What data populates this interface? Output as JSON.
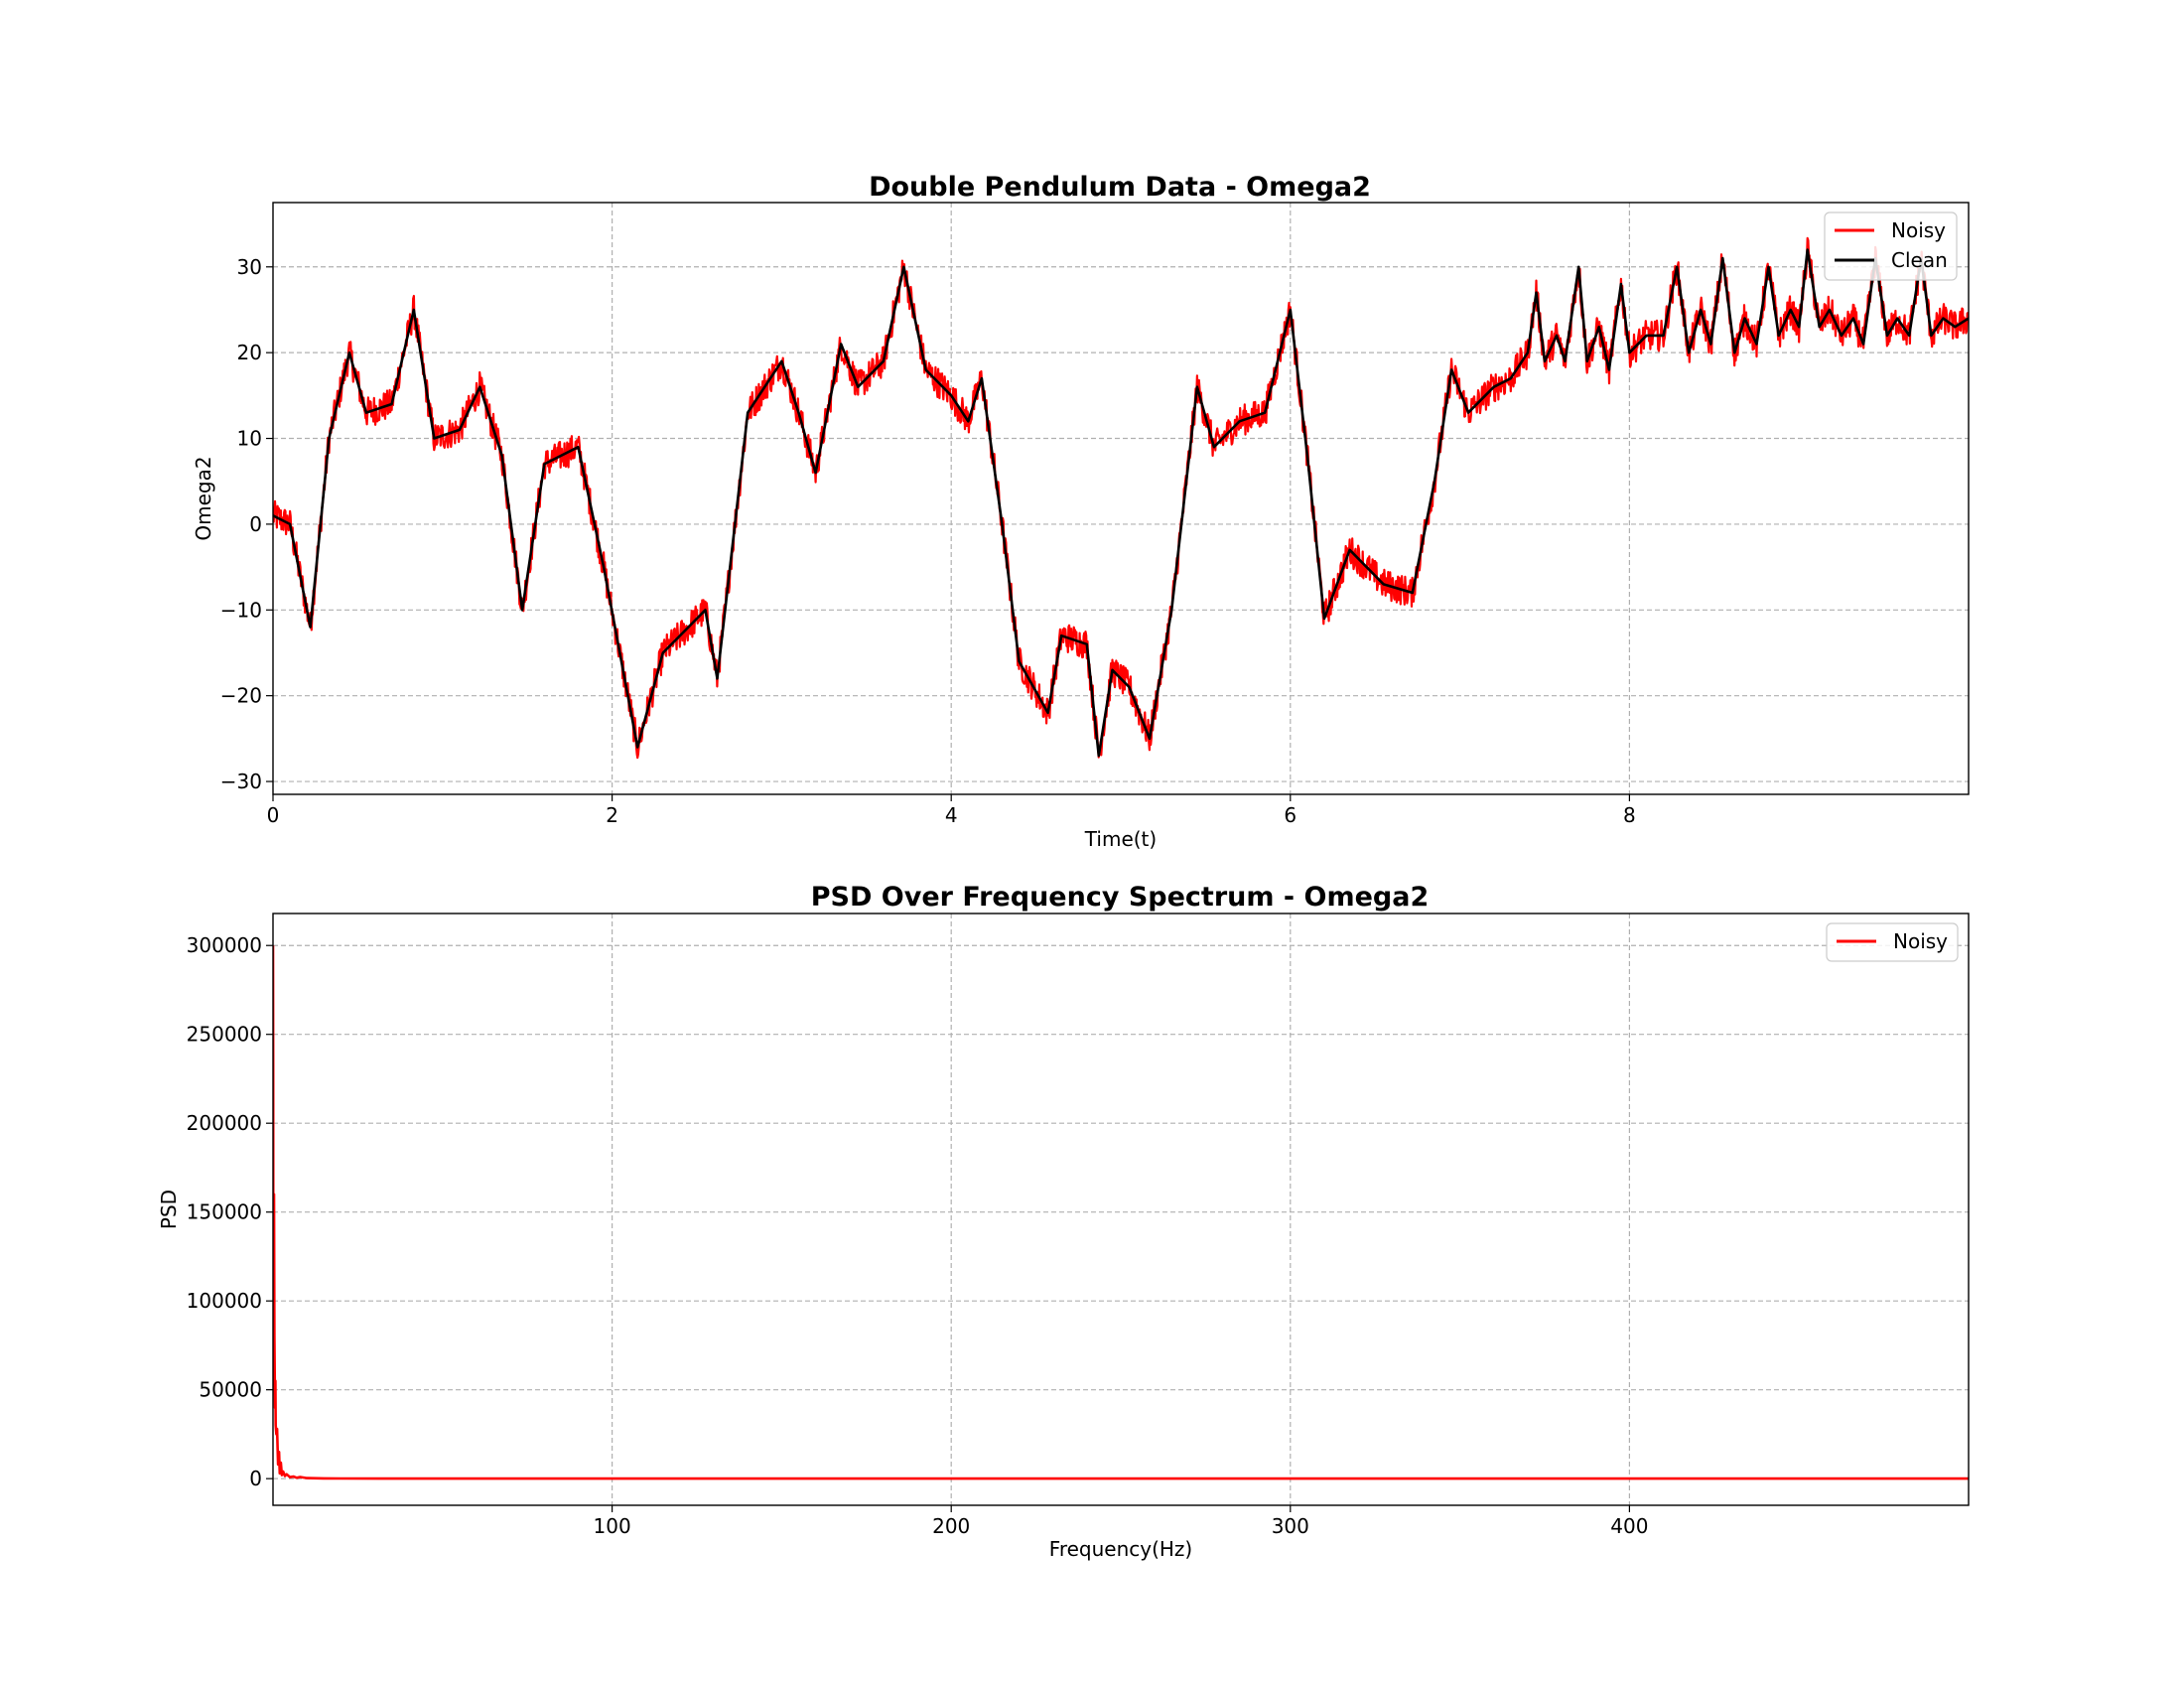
{
  "chart_data": [
    {
      "type": "line",
      "title": "Double Pendulum Data - Omega2",
      "xlabel": "Time(t)",
      "ylabel": "Omega2",
      "xlim": [
        0,
        10
      ],
      "ylim": [
        -31.5,
        37.5
      ],
      "xticks": [
        0,
        2,
        4,
        6,
        8
      ],
      "xtick_labels": [
        "0",
        "2",
        "4",
        "6",
        "8"
      ],
      "yticks": [
        30,
        20,
        10,
        0,
        -10,
        -20,
        -30
      ],
      "ytick_labels": [
        "30",
        "20",
        "10",
        "0",
        "−10",
        "−20",
        "−30"
      ],
      "grid": true,
      "legend": "top-right",
      "series": [
        {
          "name": "Noisy",
          "color": "#ff0000",
          "noise_amplitude": 1.8,
          "x": [
            0,
            0.1,
            0.22,
            0.33,
            0.45,
            0.55,
            0.7,
            0.83,
            0.95,
            1.1,
            1.22,
            1.35,
            1.47,
            1.6,
            1.8,
            1.95,
            2.15,
            2.3,
            2.45,
            2.55,
            2.62,
            2.8,
            3.0,
            3.1,
            3.2,
            3.35,
            3.45,
            3.6,
            3.72,
            3.85,
            4.0,
            4.1,
            4.18,
            4.3,
            4.4,
            4.57,
            4.65,
            4.8,
            4.87,
            4.95,
            5.05,
            5.17,
            5.3,
            5.45,
            5.55,
            5.7,
            5.85,
            6.0,
            6.1,
            6.2,
            6.35,
            6.55,
            6.72,
            6.85,
            6.95,
            7.05,
            7.2,
            7.3,
            7.4,
            7.45,
            7.5,
            7.57,
            7.62,
            7.7,
            7.75,
            7.82,
            7.88,
            7.95,
            8.0,
            8.1,
            8.2,
            8.28,
            8.35,
            8.42,
            8.48,
            8.55,
            8.62,
            8.68,
            8.75,
            8.82,
            8.88,
            8.95,
            9.0,
            9.05,
            9.12,
            9.18,
            9.25,
            9.32,
            9.38,
            9.45,
            9.52,
            9.58,
            9.65,
            9.72,
            9.78,
            9.85,
            9.92,
            10.0
          ],
          "y": [
            1,
            0,
            -12,
            10,
            20,
            13,
            14,
            25,
            10,
            11,
            16,
            8,
            -10,
            7,
            9,
            -5,
            -26,
            -15,
            -12,
            -10,
            -18,
            13,
            19,
            13,
            6,
            21,
            16,
            19,
            30,
            18,
            15,
            12,
            17,
            0,
            -16,
            -22,
            -13,
            -14,
            -27,
            -17,
            -19,
            -25,
            -10,
            16,
            9,
            12,
            13,
            25,
            8,
            -11,
            -3,
            -7,
            -8,
            5,
            18,
            13,
            16,
            17,
            20,
            27,
            19,
            22,
            19,
            30,
            19,
            23,
            18,
            28,
            20,
            22,
            22,
            30,
            20,
            25,
            21,
            31,
            20,
            24,
            21,
            30,
            22,
            25,
            23,
            32,
            23,
            25,
            22,
            24,
            21,
            31,
            22,
            24,
            22,
            31,
            22,
            24,
            23,
            24
          ]
        },
        {
          "name": "Clean",
          "color": "#000000",
          "x": [
            0,
            0.1,
            0.22,
            0.33,
            0.45,
            0.55,
            0.7,
            0.83,
            0.95,
            1.1,
            1.22,
            1.35,
            1.47,
            1.6,
            1.8,
            1.95,
            2.15,
            2.3,
            2.45,
            2.55,
            2.62,
            2.8,
            3.0,
            3.1,
            3.2,
            3.35,
            3.45,
            3.6,
            3.72,
            3.85,
            4.0,
            4.1,
            4.18,
            4.3,
            4.4,
            4.57,
            4.65,
            4.8,
            4.87,
            4.95,
            5.05,
            5.17,
            5.3,
            5.45,
            5.55,
            5.7,
            5.85,
            6.0,
            6.1,
            6.2,
            6.35,
            6.55,
            6.72,
            6.85,
            6.95,
            7.05,
            7.2,
            7.3,
            7.4,
            7.45,
            7.5,
            7.57,
            7.62,
            7.7,
            7.75,
            7.82,
            7.88,
            7.95,
            8.0,
            8.1,
            8.2,
            8.28,
            8.35,
            8.42,
            8.48,
            8.55,
            8.62,
            8.68,
            8.75,
            8.82,
            8.88,
            8.95,
            9.0,
            9.05,
            9.12,
            9.18,
            9.25,
            9.32,
            9.38,
            9.45,
            9.52,
            9.58,
            9.65,
            9.72,
            9.78,
            9.85,
            9.92,
            10.0
          ],
          "y": [
            1,
            0,
            -12,
            10,
            20,
            13,
            14,
            25,
            10,
            11,
            16,
            8,
            -10,
            7,
            9,
            -5,
            -26,
            -15,
            -12,
            -10,
            -18,
            13,
            19,
            13,
            6,
            21,
            16,
            19,
            30,
            18,
            15,
            12,
            17,
            0,
            -16,
            -22,
            -13,
            -14,
            -27,
            -17,
            -19,
            -25,
            -10,
            16,
            9,
            12,
            13,
            25,
            8,
            -11,
            -3,
            -7,
            -8,
            5,
            18,
            13,
            16,
            17,
            20,
            27,
            19,
            22,
            19,
            30,
            19,
            23,
            18,
            28,
            20,
            22,
            22,
            30,
            20,
            25,
            21,
            31,
            20,
            24,
            21,
            30,
            22,
            25,
            23,
            32,
            23,
            25,
            22,
            24,
            21,
            31,
            22,
            24,
            22,
            31,
            22,
            24,
            23,
            24
          ]
        }
      ]
    },
    {
      "type": "line",
      "title": "PSD Over Frequency Spectrum - Omega2",
      "xlabel": "Frequency(Hz)",
      "ylabel": "PSD",
      "xlim": [
        0,
        500
      ],
      "ylim": [
        -15000,
        318000
      ],
      "xticks": [
        100,
        200,
        300,
        400
      ],
      "xtick_labels": [
        "100",
        "200",
        "300",
        "400"
      ],
      "yticks": [
        300000,
        250000,
        200000,
        150000,
        100000,
        50000,
        0
      ],
      "ytick_labels": [
        "300000",
        "250000",
        "200000",
        "150000",
        "100000",
        "50000",
        "0"
      ],
      "grid": true,
      "legend": "top-right",
      "series": [
        {
          "name": "Noisy",
          "color": "#ff0000",
          "x": [
            0,
            0.05,
            0.1,
            0.15,
            0.2,
            0.3,
            0.4,
            0.5,
            0.6,
            0.7,
            0.8,
            1.0,
            1.2,
            1.5,
            1.8,
            2.0,
            2.3,
            2.6,
            3.0,
            3.5,
            4.0,
            5.0,
            6.0,
            7.0,
            8.0,
            10.0,
            15.0,
            20.0,
            50.0,
            100.0,
            200.0,
            300.0,
            400.0,
            500.0
          ],
          "y": [
            300000,
            230000,
            90000,
            150000,
            120000,
            160000,
            80000,
            60000,
            40000,
            55000,
            30000,
            25000,
            28000,
            8000,
            15000,
            3000,
            9000,
            2000,
            4000,
            1500,
            2500,
            800,
            1200,
            500,
            900,
            300,
            150,
            80,
            40,
            20,
            10,
            5,
            3,
            2
          ]
        }
      ]
    }
  ]
}
